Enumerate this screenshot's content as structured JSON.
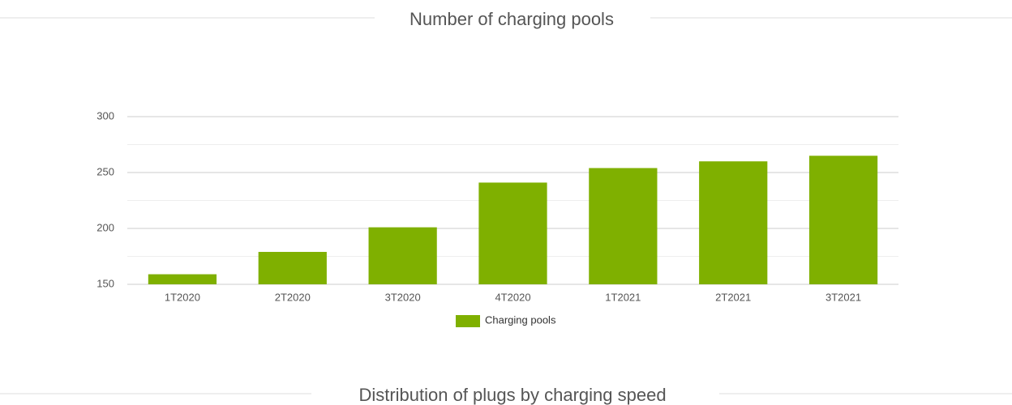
{
  "chart_data": {
    "type": "bar",
    "title": "Number of charging pools",
    "categories": [
      "1T2020",
      "2T2020",
      "3T2020",
      "4T2020",
      "1T2021",
      "2T2021",
      "3T2021"
    ],
    "series": [
      {
        "name": "Charging pools",
        "color": "#7fb000",
        "values": [
          159,
          179,
          201,
          241,
          254,
          260,
          265
        ]
      }
    ],
    "ylim": [
      150,
      300
    ],
    "yticks": [
      150,
      200,
      250,
      300
    ],
    "minor_yticks": [
      175,
      225,
      275
    ],
    "grid": true,
    "legend": "bottom"
  },
  "next_section_title": "Distribution of plugs by charging speed"
}
